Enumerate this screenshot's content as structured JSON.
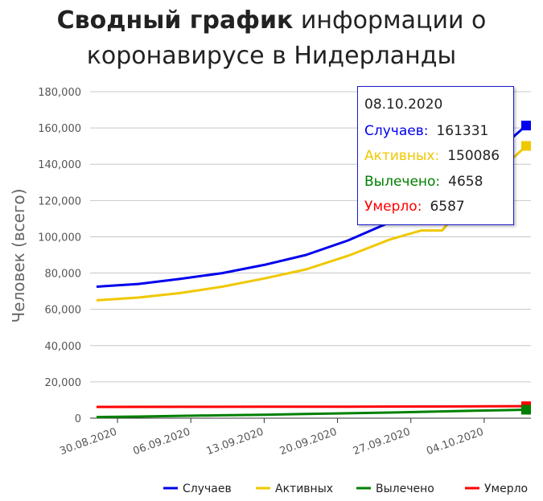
{
  "title_bold": "Сводный график",
  "title_rest_line1": " информации о",
  "title_line2": "коронавирусе в Нидерланды",
  "tooltip": {
    "date": "08.10.2020",
    "rows": [
      {
        "label": "Случаев:",
        "value": "161331",
        "color": "#0000ee"
      },
      {
        "label": "Активных:",
        "value": "150086",
        "color": "#f0c800"
      },
      {
        "label": "Вылечено:",
        "value": "4658",
        "color": "#008000"
      },
      {
        "label": "Умерло:",
        "value": "6587",
        "color": "#ff0000"
      }
    ]
  },
  "chart_data": {
    "type": "line",
    "ylabel": "Человек (всего)",
    "ylim": [
      0,
      180000
    ],
    "y_ticks": [
      "0",
      "20,000",
      "40,000",
      "60,000",
      "80,000",
      "100,000",
      "120,000",
      "140,000",
      "160,000",
      "180,000"
    ],
    "x_tick_labels": [
      "30.08.2020",
      "06.09.2020",
      "13.09.2020",
      "20.09.2020",
      "27.09.2020",
      "04.10.2020"
    ],
    "x_start": "2020-08-28",
    "x_end": "2020-10-08",
    "legend_position": "bottom",
    "grid": true,
    "series": [
      {
        "name": "Случаев",
        "color": "#0000ee",
        "points": [
          [
            "2020-08-28",
            72500
          ],
          [
            "2020-09-01",
            74000
          ],
          [
            "2020-09-05",
            76800
          ],
          [
            "2020-09-09",
            80000
          ],
          [
            "2020-09-13",
            84500
          ],
          [
            "2020-09-17",
            90000
          ],
          [
            "2020-09-21",
            98000
          ],
          [
            "2020-09-25",
            108000
          ],
          [
            "2020-09-29",
            120000
          ],
          [
            "2020-10-02",
            132000
          ],
          [
            "2020-10-05",
            146000
          ],
          [
            "2020-10-08",
            161331
          ]
        ]
      },
      {
        "name": "Активных",
        "color": "#f0c800",
        "points": [
          [
            "2020-08-28",
            65000
          ],
          [
            "2020-09-01",
            66500
          ],
          [
            "2020-09-05",
            69000
          ],
          [
            "2020-09-09",
            72500
          ],
          [
            "2020-09-13",
            77000
          ],
          [
            "2020-09-17",
            82000
          ],
          [
            "2020-09-21",
            89500
          ],
          [
            "2020-09-25",
            98500
          ],
          [
            "2020-09-28",
            103500
          ],
          [
            "2020-09-30",
            103500
          ],
          [
            "2020-10-02",
            118000
          ],
          [
            "2020-10-05",
            134000
          ],
          [
            "2020-10-08",
            150086
          ]
        ]
      },
      {
        "name": "Вылечено",
        "color": "#008000",
        "points": [
          [
            "2020-08-28",
            600
          ],
          [
            "2020-09-01",
            900
          ],
          [
            "2020-09-05",
            1300
          ],
          [
            "2020-09-09",
            1600
          ],
          [
            "2020-09-13",
            1900
          ],
          [
            "2020-09-17",
            2300
          ],
          [
            "2020-09-21",
            2700
          ],
          [
            "2020-09-25",
            3100
          ],
          [
            "2020-09-29",
            3600
          ],
          [
            "2020-10-03",
            4100
          ],
          [
            "2020-10-08",
            4658
          ]
        ]
      },
      {
        "name": "Умерло",
        "color": "#ff0000",
        "points": [
          [
            "2020-08-28",
            6200
          ],
          [
            "2020-09-05",
            6250
          ],
          [
            "2020-09-13",
            6300
          ],
          [
            "2020-09-21",
            6350
          ],
          [
            "2020-09-29",
            6450
          ],
          [
            "2020-10-08",
            6587
          ]
        ]
      }
    ]
  }
}
